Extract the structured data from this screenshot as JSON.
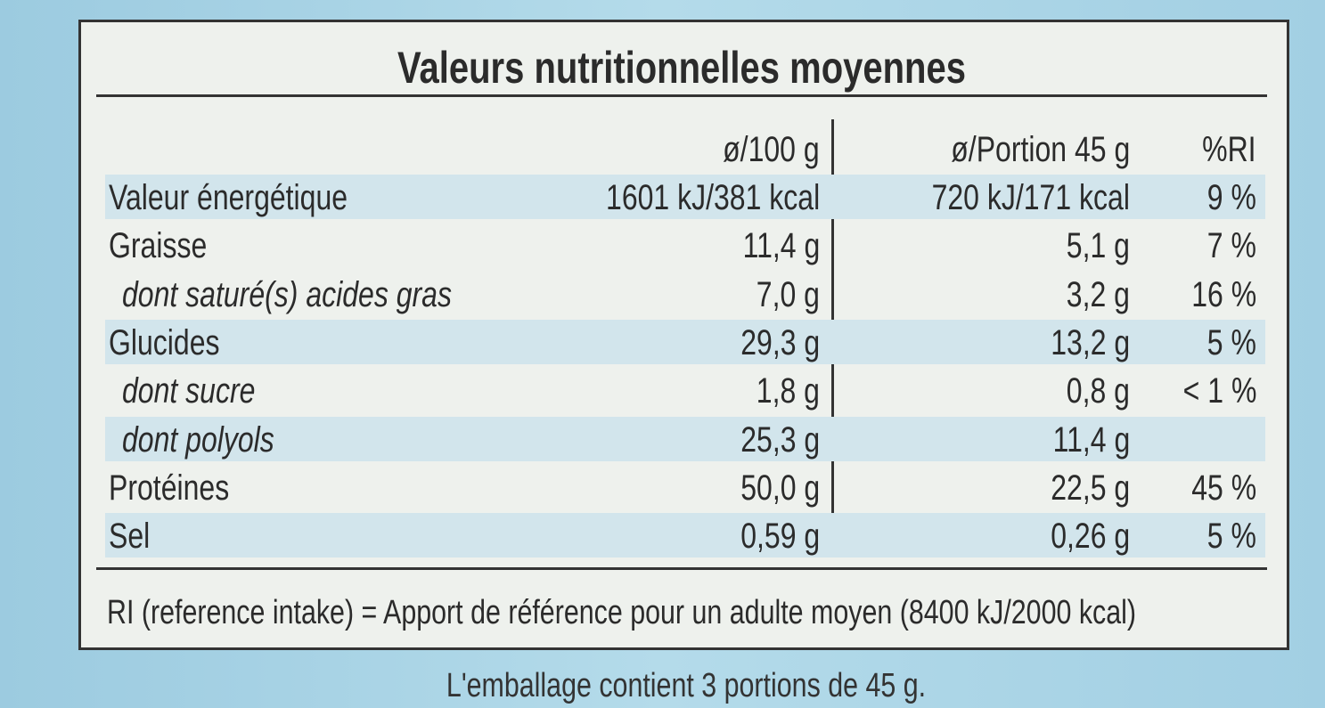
{
  "title": "Valeurs nutritionnelles moyennes",
  "table": {
    "columns": {
      "per_100g": "ø/100 g",
      "per_portion": "ø/Portion 45 g",
      "ri": "%RI"
    },
    "rows": [
      {
        "label": "Valeur énergétique",
        "per_100g": "1601 kJ/381 kcal",
        "per_portion": "720 kJ/171 kcal",
        "ri": "9 %"
      },
      {
        "label": "Graisse",
        "per_100g": "11,4 g",
        "per_portion": "5,1 g",
        "ri": "7 %"
      },
      {
        "label": "dont saturé(s) acides gras",
        "per_100g": "7,0 g",
        "per_portion": "3,2 g",
        "ri": "16 %"
      },
      {
        "label": "Glucides",
        "per_100g": "29,3 g",
        "per_portion": "13,2 g",
        "ri": "5 %"
      },
      {
        "label": "dont sucre",
        "per_100g": "1,8 g",
        "per_portion": "0,8 g",
        "ri": "< 1 %"
      },
      {
        "label": "dont polyols",
        "per_100g": "25,3 g",
        "per_portion": "11,4 g"
      },
      {
        "label": "Protéines",
        "per_100g": "50,0 g",
        "per_portion": "22,5 g",
        "ri": "45 %"
      },
      {
        "label": "Sel",
        "per_100g": "0,59 g",
        "per_portion": "0,26 g",
        "ri": "5 %"
      }
    ]
  },
  "footnote": "RI (reference intake) = Apport de référence pour un adulte moyen (8400 kJ/2000 kcal)",
  "package_note": "L'emballage contient 3 portions de 45 g."
}
